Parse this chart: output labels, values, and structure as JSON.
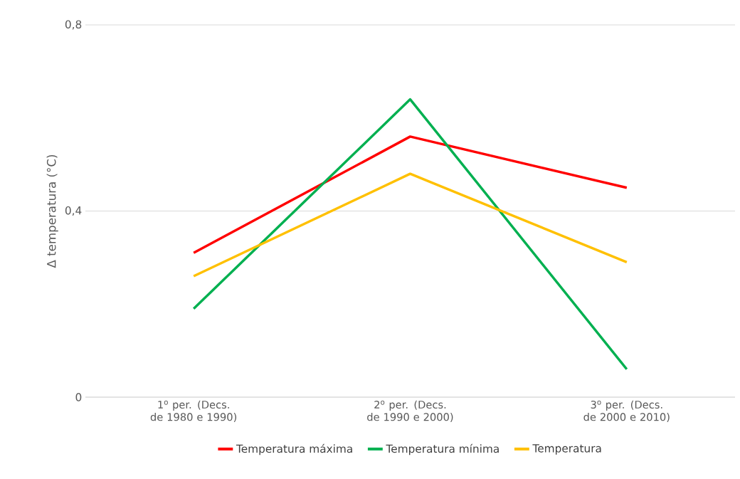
{
  "chart_data": {
    "type": "line",
    "ylabel": "Δ temperatura (°C)",
    "categories": [
      "1$^{o}$ per. (Decs. de 1980 e 1990)",
      "2$^{o}$ per. (Decs. de 1990 e 2000)",
      "3$^{o}$ per. (Decs. de 2000 e 2010)"
    ],
    "series": [
      {
        "name": "Temperatura máxima",
        "color": "#ff0000",
        "values": [
          0.31,
          0.56,
          0.45
        ]
      },
      {
        "name": "Temperatura mínima",
        "color": "#00b050",
        "values": [
          0.19,
          0.64,
          0.06
        ]
      },
      {
        "name": "Temperatura",
        "color": "#ffc000",
        "values": [
          0.26,
          0.48,
          0.29
        ]
      }
    ],
    "ylim": [
      0,
      0.8
    ],
    "yticks": [
      {
        "value": 0,
        "label": "0"
      },
      {
        "value": 0.4,
        "label": "0,4"
      },
      {
        "value": 0.8,
        "label": "0,8"
      }
    ],
    "grid": "y",
    "legend": "bottom",
    "marker": "none",
    "line_style": "solid"
  }
}
